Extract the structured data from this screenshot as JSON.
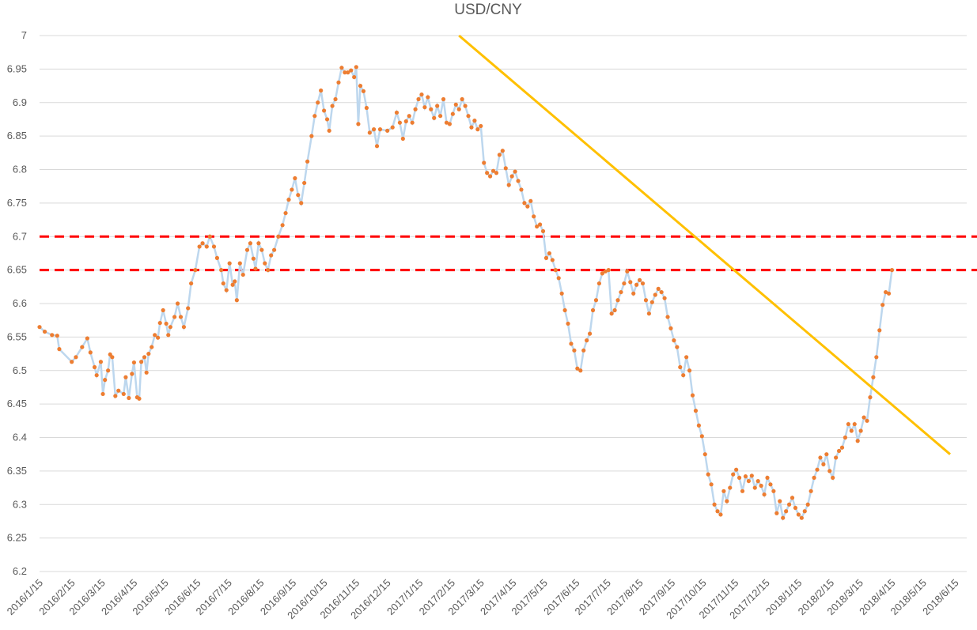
{
  "chart_data": {
    "type": "line",
    "title": "USD/CNY",
    "xlabel": "",
    "ylabel": "",
    "ylim": [
      6.2,
      7.0
    ],
    "ytick_step": 0.05,
    "grid": "horizontal",
    "x_ticks": [
      "2016/1/15",
      "2016/2/15",
      "2016/3/15",
      "2016/4/15",
      "2016/5/15",
      "2016/6/15",
      "2016/7/15",
      "2016/8/15",
      "2016/9/15",
      "2016/10/15",
      "2016/11/15",
      "2016/12/15",
      "2017/1/15",
      "2017/2/15",
      "2017/3/15",
      "2017/4/15",
      "2017/5/15",
      "2017/6/15",
      "2017/7/15",
      "2017/8/15",
      "2017/9/15",
      "2017/10/15",
      "2017/11/15",
      "2017/12/15",
      "2018/1/15",
      "2018/2/15",
      "2018/3/15",
      "2018/4/15",
      "2018/5/15",
      "2018/6/15"
    ],
    "colors": {
      "line": "#bdd7ee",
      "marker": "#ed7d31",
      "trendline": "#ffc000",
      "reference": "#ff0000",
      "axis_text": "#595959",
      "grid": "#d9d9d9"
    },
    "series": [
      {
        "style": "line-with-markers",
        "points": [
          [
            "2016/1/15",
            6.565
          ],
          [
            "2016/1/20",
            6.558
          ],
          [
            "2016/1/27",
            6.553
          ],
          [
            "2016/2/1",
            6.552
          ],
          [
            "2016/2/3",
            6.532
          ],
          [
            "2016/2/15",
            6.513
          ],
          [
            "2016/2/19",
            6.52
          ],
          [
            "2016/2/25",
            6.535
          ],
          [
            "2016/3/1",
            6.548
          ],
          [
            "2016/3/4",
            6.527
          ],
          [
            "2016/3/8",
            6.505
          ],
          [
            "2016/3/10",
            6.493
          ],
          [
            "2016/3/14",
            6.513
          ],
          [
            "2016/3/16",
            6.465
          ],
          [
            "2016/3/18",
            6.486
          ],
          [
            "2016/3/21",
            6.5
          ],
          [
            "2016/3/23",
            6.524
          ],
          [
            "2016/3/25",
            6.52
          ],
          [
            "2016/3/28",
            6.462
          ],
          [
            "2016/3/31",
            6.47
          ],
          [
            "2016/4/5",
            6.465
          ],
          [
            "2016/4/7",
            6.49
          ],
          [
            "2016/4/10",
            6.459
          ],
          [
            "2016/4/13",
            6.495
          ],
          [
            "2016/4/15",
            6.512
          ],
          [
            "2016/4/18",
            6.46
          ],
          [
            "2016/4/20",
            6.458
          ],
          [
            "2016/4/22",
            6.513
          ],
          [
            "2016/4/25",
            6.52
          ],
          [
            "2016/4/27",
            6.497
          ],
          [
            "2016/4/29",
            6.525
          ],
          [
            "2016/5/2",
            6.535
          ],
          [
            "2016/5/5",
            6.553
          ],
          [
            "2016/5/8",
            6.549
          ],
          [
            "2016/5/10",
            6.571
          ],
          [
            "2016/5/13",
            6.59
          ],
          [
            "2016/5/16",
            6.57
          ],
          [
            "2016/5/18",
            6.553
          ],
          [
            "2016/5/20",
            6.565
          ],
          [
            "2016/5/24",
            6.58
          ],
          [
            "2016/5/27",
            6.6
          ],
          [
            "2016/5/30",
            6.58
          ],
          [
            "2016/6/2",
            6.565
          ],
          [
            "2016/6/6",
            6.593
          ],
          [
            "2016/6/9",
            6.63
          ],
          [
            "2016/6/13",
            6.65
          ],
          [
            "2016/6/17",
            6.685
          ],
          [
            "2016/6/20",
            6.69
          ],
          [
            "2016/6/24",
            6.685
          ],
          [
            "2016/6/27",
            6.7
          ],
          [
            "2016/7/1",
            6.685
          ],
          [
            "2016/7/4",
            6.668
          ],
          [
            "2016/7/8",
            6.65
          ],
          [
            "2016/7/10",
            6.63
          ],
          [
            "2016/7/13",
            6.62
          ],
          [
            "2016/7/16",
            6.66
          ],
          [
            "2016/7/19",
            6.628
          ],
          [
            "2016/7/21",
            6.633
          ],
          [
            "2016/7/23",
            6.605
          ],
          [
            "2016/7/26",
            6.66
          ],
          [
            "2016/7/29",
            6.643
          ],
          [
            "2016/8/2",
            6.68
          ],
          [
            "2016/8/5",
            6.69
          ],
          [
            "2016/8/8",
            6.667
          ],
          [
            "2016/8/10",
            6.652
          ],
          [
            "2016/8/13",
            6.69
          ],
          [
            "2016/8/16",
            6.68
          ],
          [
            "2016/8/19",
            6.66
          ],
          [
            "2016/8/22",
            6.65
          ],
          [
            "2016/8/25",
            6.672
          ],
          [
            "2016/8/28",
            6.68
          ],
          [
            "2016/9/1",
            6.7
          ],
          [
            "2016/9/5",
            6.717
          ],
          [
            "2016/9/8",
            6.735
          ],
          [
            "2016/9/11",
            6.755
          ],
          [
            "2016/9/14",
            6.77
          ],
          [
            "2016/9/17",
            6.787
          ],
          [
            "2016/9/20",
            6.762
          ],
          [
            "2016/9/23",
            6.75
          ],
          [
            "2016/9/26",
            6.78
          ],
          [
            "2016/9/29",
            6.812
          ],
          [
            "2016/10/3",
            6.85
          ],
          [
            "2016/10/6",
            6.88
          ],
          [
            "2016/10/9",
            6.9
          ],
          [
            "2016/10/12",
            6.918
          ],
          [
            "2016/10/15",
            6.888
          ],
          [
            "2016/10/18",
            6.875
          ],
          [
            "2016/10/20",
            6.858
          ],
          [
            "2016/10/23",
            6.895
          ],
          [
            "2016/10/26",
            6.905
          ],
          [
            "2016/10/29",
            6.93
          ],
          [
            "2016/11/1",
            6.952
          ],
          [
            "2016/11/4",
            6.945
          ],
          [
            "2016/11/7",
            6.945
          ],
          [
            "2016/11/10",
            6.948
          ],
          [
            "2016/11/13",
            6.938
          ],
          [
            "2016/11/15",
            6.953
          ],
          [
            "2016/11/17",
            6.868
          ],
          [
            "2016/11/19",
            6.925
          ],
          [
            "2016/11/22",
            6.917
          ],
          [
            "2016/11/25",
            6.892
          ],
          [
            "2016/11/28",
            6.855
          ],
          [
            "2016/12/2",
            6.86
          ],
          [
            "2016/12/5",
            6.835
          ],
          [
            "2016/12/8",
            6.86
          ],
          [
            "2016/12/15",
            6.858
          ],
          [
            "2016/12/20",
            6.863
          ],
          [
            "2016/12/24",
            6.885
          ],
          [
            "2016/12/27",
            6.87
          ],
          [
            "2016/12/30",
            6.846
          ],
          [
            "2017/1/2",
            6.872
          ],
          [
            "2017/1/5",
            6.88
          ],
          [
            "2017/1/8",
            6.87
          ],
          [
            "2017/1/11",
            6.89
          ],
          [
            "2017/1/14",
            6.905
          ],
          [
            "2017/1/17",
            6.912
          ],
          [
            "2017/1/20",
            6.893
          ],
          [
            "2017/1/23",
            6.908
          ],
          [
            "2017/1/26",
            6.89
          ],
          [
            "2017/1/29",
            6.877
          ],
          [
            "2017/2/1",
            6.895
          ],
          [
            "2017/2/4",
            6.88
          ],
          [
            "2017/2/7",
            6.905
          ],
          [
            "2017/2/10",
            6.87
          ],
          [
            "2017/2/13",
            6.868
          ],
          [
            "2017/2/16",
            6.883
          ],
          [
            "2017/2/19",
            6.897
          ],
          [
            "2017/2/22",
            6.89
          ],
          [
            "2017/2/25",
            6.905
          ],
          [
            "2017/2/28",
            6.895
          ],
          [
            "2017/3/3",
            6.88
          ],
          [
            "2017/3/6",
            6.863
          ],
          [
            "2017/3/9",
            6.873
          ],
          [
            "2017/3/12",
            6.86
          ],
          [
            "2017/3/15",
            6.865
          ],
          [
            "2017/3/18",
            6.81
          ],
          [
            "2017/3/21",
            6.795
          ],
          [
            "2017/3/24",
            6.79
          ],
          [
            "2017/3/27",
            6.798
          ],
          [
            "2017/3/30",
            6.795
          ],
          [
            "2017/4/2",
            6.822
          ],
          [
            "2017/4/5",
            6.828
          ],
          [
            "2017/4/8",
            6.802
          ],
          [
            "2017/4/11",
            6.777
          ],
          [
            "2017/4/14",
            6.79
          ],
          [
            "2017/4/17",
            6.797
          ],
          [
            "2017/4/20",
            6.783
          ],
          [
            "2017/4/23",
            6.77
          ],
          [
            "2017/4/26",
            6.75
          ],
          [
            "2017/4/29",
            6.745
          ],
          [
            "2017/5/2",
            6.753
          ],
          [
            "2017/5/5",
            6.73
          ],
          [
            "2017/5/8",
            6.715
          ],
          [
            "2017/5/11",
            6.718
          ],
          [
            "2017/5/14",
            6.708
          ],
          [
            "2017/5/17",
            6.668
          ],
          [
            "2017/5/20",
            6.675
          ],
          [
            "2017/5/23",
            6.665
          ],
          [
            "2017/5/26",
            6.65
          ],
          [
            "2017/5/29",
            6.638
          ],
          [
            "2017/6/1",
            6.615
          ],
          [
            "2017/6/4",
            6.59
          ],
          [
            "2017/6/7",
            6.57
          ],
          [
            "2017/6/10",
            6.54
          ],
          [
            "2017/6/13",
            6.53
          ],
          [
            "2017/6/16",
            6.503
          ],
          [
            "2017/6/19",
            6.5
          ],
          [
            "2017/6/22",
            6.53
          ],
          [
            "2017/6/25",
            6.545
          ],
          [
            "2017/6/28",
            6.555
          ],
          [
            "2017/7/1",
            6.59
          ],
          [
            "2017/7/4",
            6.605
          ],
          [
            "2017/7/7",
            6.63
          ],
          [
            "2017/7/10",
            6.645
          ],
          [
            "2017/7/13",
            6.648
          ],
          [
            "2017/7/16",
            6.65
          ],
          [
            "2017/7/19",
            6.585
          ],
          [
            "2017/7/22",
            6.59
          ],
          [
            "2017/7/25",
            6.605
          ],
          [
            "2017/7/28",
            6.617
          ],
          [
            "2017/7/31",
            6.63
          ],
          [
            "2017/8/3",
            6.648
          ],
          [
            "2017/8/6",
            6.632
          ],
          [
            "2017/8/9",
            6.615
          ],
          [
            "2017/8/12",
            6.628
          ],
          [
            "2017/8/15",
            6.635
          ],
          [
            "2017/8/18",
            6.63
          ],
          [
            "2017/8/21",
            6.605
          ],
          [
            "2017/8/24",
            6.585
          ],
          [
            "2017/8/27",
            6.602
          ],
          [
            "2017/8/30",
            6.613
          ],
          [
            "2017/9/2",
            6.622
          ],
          [
            "2017/9/5",
            6.617
          ],
          [
            "2017/9/8",
            6.608
          ],
          [
            "2017/9/11",
            6.58
          ],
          [
            "2017/9/14",
            6.563
          ],
          [
            "2017/9/17",
            6.545
          ],
          [
            "2017/9/20",
            6.535
          ],
          [
            "2017/9/23",
            6.505
          ],
          [
            "2017/9/26",
            6.493
          ],
          [
            "2017/9/29",
            6.52
          ],
          [
            "2017/10/2",
            6.5
          ],
          [
            "2017/10/5",
            6.463
          ],
          [
            "2017/10/8",
            6.44
          ],
          [
            "2017/10/11",
            6.418
          ],
          [
            "2017/10/14",
            6.402
          ],
          [
            "2017/10/17",
            6.375
          ],
          [
            "2017/10/20",
            6.345
          ],
          [
            "2017/10/23",
            6.33
          ],
          [
            "2017/10/26",
            6.3
          ],
          [
            "2017/10/29",
            6.29
          ],
          [
            "2017/11/1",
            6.285
          ],
          [
            "2017/11/4",
            6.32
          ],
          [
            "2017/11/7",
            6.305
          ],
          [
            "2017/11/10",
            6.325
          ],
          [
            "2017/11/13",
            6.345
          ],
          [
            "2017/11/16",
            6.352
          ],
          [
            "2017/11/19",
            6.34
          ],
          [
            "2017/11/22",
            6.32
          ],
          [
            "2017/11/25",
            6.342
          ],
          [
            "2017/11/28",
            6.335
          ],
          [
            "2017/12/1",
            6.343
          ],
          [
            "2017/12/4",
            6.325
          ],
          [
            "2017/12/7",
            6.335
          ],
          [
            "2017/12/10",
            6.328
          ],
          [
            "2017/12/13",
            6.315
          ],
          [
            "2017/12/16",
            6.34
          ],
          [
            "2017/12/19",
            6.33
          ],
          [
            "2017/12/22",
            6.32
          ],
          [
            "2017/12/25",
            6.287
          ],
          [
            "2017/12/28",
            6.305
          ],
          [
            "2017/12/31",
            6.28
          ],
          [
            "2018/1/3",
            6.29
          ],
          [
            "2018/1/6",
            6.3
          ],
          [
            "2018/1/9",
            6.31
          ],
          [
            "2018/1/12",
            6.295
          ],
          [
            "2018/1/15",
            6.285
          ],
          [
            "2018/1/18",
            6.28
          ],
          [
            "2018/1/21",
            6.29
          ],
          [
            "2018/1/24",
            6.3
          ],
          [
            "2018/1/27",
            6.32
          ],
          [
            "2018/1/30",
            6.34
          ],
          [
            "2018/2/2",
            6.352
          ],
          [
            "2018/2/5",
            6.37
          ],
          [
            "2018/2/8",
            6.36
          ],
          [
            "2018/2/11",
            6.375
          ],
          [
            "2018/2/14",
            6.35
          ],
          [
            "2018/2/17",
            6.34
          ],
          [
            "2018/2/20",
            6.37
          ],
          [
            "2018/2/23",
            6.38
          ],
          [
            "2018/2/26",
            6.385
          ],
          [
            "2018/3/1",
            6.4
          ],
          [
            "2018/3/4",
            6.42
          ],
          [
            "2018/3/7",
            6.41
          ],
          [
            "2018/3/10",
            6.42
          ],
          [
            "2018/3/13",
            6.395
          ],
          [
            "2018/3/16",
            6.41
          ],
          [
            "2018/3/19",
            6.43
          ],
          [
            "2018/3/22",
            6.425
          ],
          [
            "2018/3/25",
            6.46
          ],
          [
            "2018/3/28",
            6.49
          ],
          [
            "2018/3/31",
            6.52
          ],
          [
            "2018/4/3",
            6.56
          ],
          [
            "2018/4/6",
            6.598
          ],
          [
            "2018/4/9",
            6.617
          ],
          [
            "2018/4/12",
            6.615
          ],
          [
            "2018/4/15",
            6.65
          ]
        ]
      }
    ],
    "trendline": {
      "start": [
        "2017/2/22",
        7.0
      ],
      "end": [
        "2018/6/10",
        6.375
      ]
    },
    "reference_lines": [
      6.7,
      6.65
    ]
  }
}
